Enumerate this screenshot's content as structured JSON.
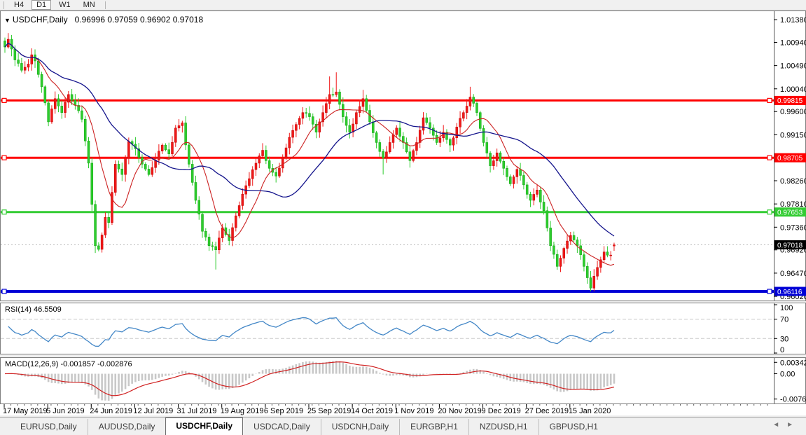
{
  "icons": {
    "dropdown": "▼",
    "scroll_left": "◄",
    "scroll_right": "►"
  },
  "toolbar": {
    "buttons": [
      {
        "label": "H4",
        "active": false
      },
      {
        "label": "D1",
        "active": true
      },
      {
        "label": "W1",
        "active": false
      },
      {
        "label": "MN",
        "active": false
      }
    ]
  },
  "tabs": {
    "items": [
      {
        "label": "EURUSD,Daily",
        "active": false
      },
      {
        "label": "AUDUSD,Daily",
        "active": false
      },
      {
        "label": "USDCHF,Daily",
        "active": true
      },
      {
        "label": "USDCAD,Daily",
        "active": false
      },
      {
        "label": "USDCNH,Daily",
        "active": false
      },
      {
        "label": "EURGBP,H1",
        "active": false
      },
      {
        "label": "NZDUSD,H1",
        "active": false
      },
      {
        "label": "GBPUSD,H1",
        "active": false
      }
    ]
  },
  "chart_data": [
    {
      "type": "candlestick",
      "title": "USDCHF,Daily",
      "ohlc": {
        "open": 0.96996,
        "high": 0.97059,
        "low": 0.96902,
        "close": 0.97018
      },
      "ohlc_text": "0.96996 0.97059 0.96902 0.97018",
      "ylim": [
        0.9594,
        1.0154
      ],
      "grid": false,
      "up_color": "#f01818",
      "down_color": "#2ecc2e",
      "y_ticks": [
        "1.01380",
        "1.00940",
        "1.00490",
        "1.00040",
        "0.99600",
        "0.99150",
        "0.98260",
        "0.97810",
        "0.97360",
        "0.96920",
        "0.96470",
        "0.96020"
      ],
      "x_tick_labels": [
        "17 May 2019",
        "5 Jun 2019",
        "24 Jun 2019",
        "12 Jul 2019",
        "31 Jul 2019",
        "19 Aug 2019",
        "6 Sep 2019",
        "25 Sep 2019",
        "14 Oct 2019",
        "1 Nov 2019",
        "20 Nov 2019",
        "9 Dec 2019",
        "27 Dec 2019",
        "15 Jan 2020"
      ],
      "x_tick_candle_indices": [
        0,
        13,
        26,
        39,
        52,
        65,
        78,
        91,
        104,
        117,
        130,
        143,
        156,
        169
      ],
      "hlines": [
        {
          "label": "0.99815",
          "price": 0.99815,
          "color": "#ff0000",
          "width": 3
        },
        {
          "label": "0.98705",
          "price": 0.98705,
          "color": "#ff0000",
          "width": 3
        },
        {
          "label": "0.97653",
          "price": 0.97653,
          "color": "#33cc33",
          "width": 3
        },
        {
          "label": "0.96116",
          "price": 0.96116,
          "color": "#0000d6",
          "width": 4
        }
      ],
      "price_marker": {
        "label": "0.97018",
        "price": 0.97018,
        "color": "#000000"
      },
      "ma_lines": [
        {
          "name": "ma-fast",
          "color": "#cc2222"
        },
        {
          "name": "ma-slow",
          "color": "#14148c"
        }
      ],
      "close_estimates": [
        [
          0,
          1.0085
        ],
        [
          1,
          1.01
        ],
        [
          3,
          1.006
        ],
        [
          5,
          1.004
        ],
        [
          7,
          1.0052
        ],
        [
          8,
          1.007
        ],
        [
          9,
          1.0058
        ],
        [
          11,
          1.0008
        ],
        [
          13,
          0.994
        ],
        [
          15,
          0.9985
        ],
        [
          17,
          0.9958
        ],
        [
          19,
          0.9993
        ],
        [
          21,
          0.9972
        ],
        [
          23,
          0.9945
        ],
        [
          25,
          0.986
        ],
        [
          27,
          0.97
        ],
        [
          28,
          0.9693
        ],
        [
          30,
          0.9755
        ],
        [
          31,
          0.9745
        ],
        [
          33,
          0.9858
        ],
        [
          35,
          0.9838
        ],
        [
          37,
          0.9902
        ],
        [
          39,
          0.9888
        ],
        [
          41,
          0.9858
        ],
        [
          43,
          0.9838
        ],
        [
          45,
          0.9866
        ],
        [
          47,
          0.9895
        ],
        [
          49,
          0.9878
        ],
        [
          51,
          0.9928
        ],
        [
          53,
          0.9938
        ],
        [
          55,
          0.9858
        ],
        [
          57,
          0.9788
        ],
        [
          59,
          0.9728
        ],
        [
          61,
          0.97
        ],
        [
          63,
          0.9692
        ],
        [
          65,
          0.9735
        ],
        [
          67,
          0.971
        ],
        [
          69,
          0.9758
        ],
        [
          71,
          0.98
        ],
        [
          73,
          0.983
        ],
        [
          75,
          0.986
        ],
        [
          77,
          0.9885
        ],
        [
          79,
          0.985
        ],
        [
          81,
          0.9835
        ],
        [
          83,
          0.987
        ],
        [
          85,
          0.991
        ],
        [
          87,
          0.9935
        ],
        [
          89,
          0.9958
        ],
        [
          91,
          0.995
        ],
        [
          93,
          0.992
        ],
        [
          95,
          0.9958
        ],
        [
          97,
          0.9993
        ],
        [
          99,
          0.9998
        ],
        [
          101,
          0.995
        ],
        [
          103,
          0.992
        ],
        [
          105,
          0.9958
        ],
        [
          107,
          0.9985
        ],
        [
          109,
          0.994
        ],
        [
          111,
          0.99
        ],
        [
          113,
          0.987
        ],
        [
          115,
          0.99
        ],
        [
          117,
          0.9928
        ],
        [
          119,
          0.99
        ],
        [
          121,
          0.9865
        ],
        [
          123,
          0.99
        ],
        [
          125,
          0.9948
        ],
        [
          127,
          0.9928
        ],
        [
          129,
          0.99
        ],
        [
          131,
          0.992
        ],
        [
          133,
          0.9895
        ],
        [
          135,
          0.993
        ],
        [
          137,
          0.9958
        ],
        [
          139,
          0.9988
        ],
        [
          141,
          0.9958
        ],
        [
          143,
          0.99
        ],
        [
          145,
          0.9855
        ],
        [
          147,
          0.988
        ],
        [
          149,
          0.985
        ],
        [
          151,
          0.982
        ],
        [
          153,
          0.9848
        ],
        [
          155,
          0.9818
        ],
        [
          157,
          0.9788
        ],
        [
          159,
          0.9808
        ],
        [
          161,
          0.9768
        ],
        [
          163,
          0.97
        ],
        [
          165,
          0.966
        ],
        [
          167,
          0.9695
        ],
        [
          169,
          0.972
        ],
        [
          171,
          0.97
        ],
        [
          173,
          0.966
        ],
        [
          175,
          0.9618
        ],
        [
          177,
          0.9658
        ],
        [
          179,
          0.9688
        ],
        [
          181,
          0.9682
        ],
        [
          182,
          0.97018
        ]
      ],
      "wick_overrides": {
        "highs": {
          "1": 1.0112,
          "97": 1.0028,
          "99": 1.0036,
          "107": 1.0002,
          "139": 1.0008
        },
        "lows": {
          "27": 0.9686,
          "63": 0.9654,
          "113": 0.9838,
          "175": 0.96118
        }
      }
    },
    {
      "type": "line",
      "name": "RSI",
      "label_text": "RSI(14) 46.5509",
      "period": 14,
      "last_value": 46.5509,
      "levels": [
        70,
        30
      ],
      "scale_labels": [
        "100",
        "70",
        "30",
        "0"
      ],
      "scale_values": [
        100,
        70,
        30,
        0
      ],
      "range": [
        0,
        100
      ],
      "color": "#4387c7"
    },
    {
      "type": "macd",
      "name": "MACD",
      "label_text": "MACD(12,26,9) -0.001857 -0.002876",
      "params": [
        12,
        26,
        9
      ],
      "last_main": -0.001857,
      "last_signal": -0.002876,
      "scale_labels": [
        "0.003428",
        "0.00",
        "-0.007615"
      ],
      "scale_values": [
        0.003428,
        0,
        -0.007615
      ],
      "histogram_color": "#c8c8c8",
      "signal_color": "#d02020"
    }
  ]
}
